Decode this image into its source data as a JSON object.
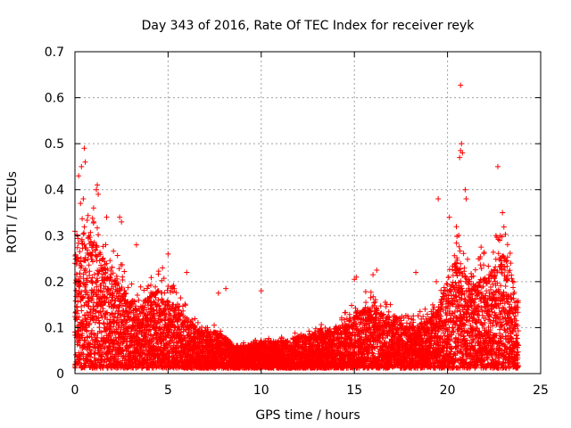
{
  "chart_data": {
    "type": "scatter",
    "title": "Day 343 of 2016, Rate Of TEC Index for receiver reyk",
    "xlabel": "GPS time / hours",
    "ylabel": "ROTI / TECUs",
    "xlim": [
      0,
      25
    ],
    "ylim": [
      0,
      0.7
    ],
    "xticks": [
      0,
      5,
      10,
      15,
      20,
      25
    ],
    "yticks": [
      0,
      0.1,
      0.2,
      0.3,
      0.4,
      0.5,
      0.6,
      0.7
    ],
    "x_tick_labels": [
      "0",
      "5",
      "10",
      "15",
      "20",
      "25"
    ],
    "y_tick_labels": [
      "0",
      "0.1",
      "0.2",
      "0.3",
      "0.4",
      "0.5",
      "0.6",
      "0.7"
    ],
    "grid": true,
    "marker": "+",
    "color": "#ff0000",
    "data_extent": [
      0,
      23.8
    ],
    "series": [
      {
        "name": "ROTI",
        "envelope_hours": [
          0,
          0.5,
          1,
          1.5,
          2,
          2.5,
          3,
          3.5,
          4,
          4.5,
          5,
          5.5,
          6,
          6.5,
          7,
          7.5,
          8,
          8.5,
          9,
          9.5,
          10,
          10.5,
          11,
          11.5,
          12,
          12.5,
          13,
          13.5,
          14,
          14.5,
          15,
          15.5,
          16,
          16.5,
          17,
          17.5,
          18,
          18.5,
          19,
          19.5,
          20,
          20.5,
          21,
          21.5,
          22,
          22.5,
          23,
          23.5,
          23.8
        ],
        "envelope_typical_max": [
          0.26,
          0.3,
          0.28,
          0.24,
          0.22,
          0.18,
          0.15,
          0.14,
          0.16,
          0.17,
          0.16,
          0.13,
          0.11,
          0.09,
          0.08,
          0.08,
          0.07,
          0.05,
          0.05,
          0.05,
          0.06,
          0.06,
          0.06,
          0.06,
          0.07,
          0.07,
          0.08,
          0.08,
          0.09,
          0.1,
          0.12,
          0.13,
          0.14,
          0.12,
          0.11,
          0.1,
          0.09,
          0.1,
          0.11,
          0.13,
          0.2,
          0.24,
          0.2,
          0.18,
          0.2,
          0.22,
          0.25,
          0.2,
          0.15
        ],
        "outliers": [
          {
            "x": 0.35,
            "y": 0.45
          },
          {
            "x": 0.55,
            "y": 0.46
          },
          {
            "x": 0.5,
            "y": 0.49
          },
          {
            "x": 0.2,
            "y": 0.43
          },
          {
            "x": 0.3,
            "y": 0.37
          },
          {
            "x": 0.45,
            "y": 0.38
          },
          {
            "x": 1.2,
            "y": 0.41
          },
          {
            "x": 1.25,
            "y": 0.39
          },
          {
            "x": 1.15,
            "y": 0.4
          },
          {
            "x": 1.7,
            "y": 0.34
          },
          {
            "x": 2.4,
            "y": 0.34
          },
          {
            "x": 2.5,
            "y": 0.33
          },
          {
            "x": 3.3,
            "y": 0.28
          },
          {
            "x": 5.0,
            "y": 0.26
          },
          {
            "x": 4.7,
            "y": 0.23
          },
          {
            "x": 6.0,
            "y": 0.22
          },
          {
            "x": 7.7,
            "y": 0.175
          },
          {
            "x": 8.1,
            "y": 0.185
          },
          {
            "x": 10.0,
            "y": 0.18
          },
          {
            "x": 15.1,
            "y": 0.21
          },
          {
            "x": 15.0,
            "y": 0.205
          },
          {
            "x": 16.2,
            "y": 0.225
          },
          {
            "x": 16.0,
            "y": 0.215
          },
          {
            "x": 18.3,
            "y": 0.22
          },
          {
            "x": 19.5,
            "y": 0.38
          },
          {
            "x": 19.4,
            "y": 0.2
          },
          {
            "x": 20.1,
            "y": 0.34
          },
          {
            "x": 20.7,
            "y": 0.627
          },
          {
            "x": 20.75,
            "y": 0.5
          },
          {
            "x": 20.7,
            "y": 0.485
          },
          {
            "x": 20.8,
            "y": 0.48
          },
          {
            "x": 20.65,
            "y": 0.47
          },
          {
            "x": 20.95,
            "y": 0.4
          },
          {
            "x": 21.0,
            "y": 0.38
          },
          {
            "x": 22.7,
            "y": 0.45
          },
          {
            "x": 22.95,
            "y": 0.35
          },
          {
            "x": 22.6,
            "y": 0.3
          },
          {
            "x": 22.8,
            "y": 0.29
          },
          {
            "x": 21.8,
            "y": 0.275
          }
        ]
      }
    ]
  }
}
